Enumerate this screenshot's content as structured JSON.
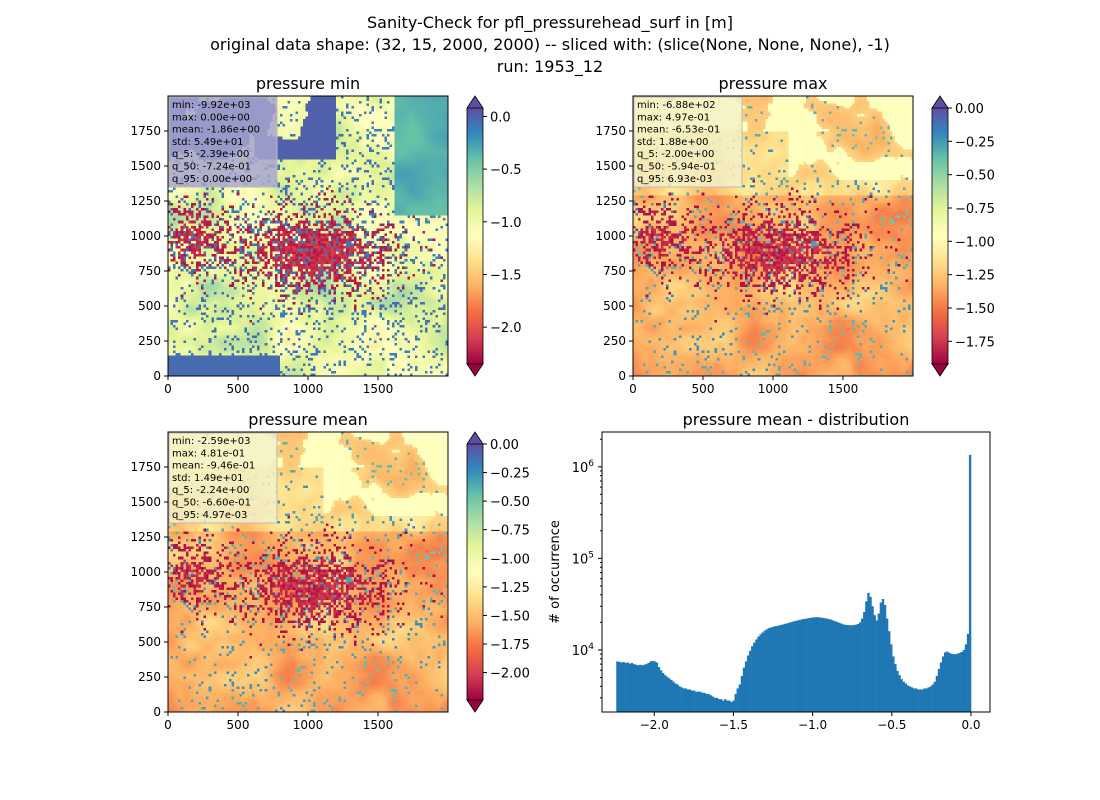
{
  "figure": {
    "title_lines": [
      "Sanity-Check for pfl_pressurehead_surf in [m]",
      "original data shape: (32, 15, 2000, 2000) -- sliced with: (slice(None, None, None), -1)",
      "run: 1953_12"
    ]
  },
  "chart_data": [
    {
      "type": "heatmap",
      "title": "pressure min",
      "colormap": "Spectral",
      "colorbar": {
        "min": -2.35,
        "max": 0.08,
        "ticks": [
          0.0,
          -0.5,
          -1.0,
          -1.5,
          -2.0
        ],
        "tick_labels": [
          "0.0",
          "−0.5",
          "−1.0",
          "−1.5",
          "−2.0"
        ],
        "extend": "both"
      },
      "xlim": [
        0,
        2000
      ],
      "ylim": [
        0,
        2000
      ],
      "xticks": [
        0,
        500,
        1000,
        1500
      ],
      "xtick_labels": [
        "0",
        "500",
        "1000",
        "1500"
      ],
      "yticks": [
        0,
        250,
        500,
        750,
        1000,
        1250,
        1500,
        1750
      ],
      "ytick_labels": [
        "0",
        "250",
        "500",
        "750",
        "1000",
        "1250",
        "1500",
        "1750"
      ],
      "stats": [
        "min: -9.92e+03",
        "max: 0.00e+00",
        "mean: -1.86e+00",
        "std: 5.49e+01",
        "q_5: -2.39e+00",
        "q_50: -7.24e-01",
        "q_95: 0.00e+00"
      ],
      "stats_box_color": "#a7a5d0"
    },
    {
      "type": "heatmap",
      "title": "pressure max",
      "colormap": "Spectral",
      "colorbar": {
        "min": -1.92,
        "max": 0.0,
        "ticks": [
          0.0,
          -0.25,
          -0.5,
          -0.75,
          -1.0,
          -1.25,
          -1.5,
          -1.75
        ],
        "tick_labels": [
          "0.00",
          "−0.25",
          "−0.50",
          "−0.75",
          "−1.00",
          "−1.25",
          "−1.50",
          "−1.75"
        ],
        "extend": "both"
      },
      "xlim": [
        0,
        2000
      ],
      "ylim": [
        0,
        2000
      ],
      "xticks": [
        0,
        500,
        1000,
        1500
      ],
      "xtick_labels": [
        "0",
        "500",
        "1000",
        "1500"
      ],
      "yticks": [
        0,
        250,
        500,
        750,
        1000,
        1250,
        1500,
        1750
      ],
      "ytick_labels": [
        "0",
        "250",
        "500",
        "750",
        "1000",
        "1250",
        "1500",
        "1750"
      ],
      "stats": [
        "min: -6.88e+02",
        "max: 4.97e-01",
        "mean: -6.53e-01",
        "std: 1.88e+00",
        "q_5: -2.00e+00",
        "q_50: -5.94e-01",
        "q_95: 6.93e-03"
      ],
      "stats_box_color": "#f4f1c6"
    },
    {
      "type": "heatmap",
      "title": "pressure mean",
      "colormap": "Spectral",
      "colorbar": {
        "min": -2.24,
        "max": 0.0,
        "ticks": [
          0.0,
          -0.25,
          -0.5,
          -0.75,
          -1.0,
          -1.25,
          -1.5,
          -1.75,
          -2.0
        ],
        "tick_labels": [
          "0.00",
          "−0.25",
          "−0.50",
          "−0.75",
          "−1.00",
          "−1.25",
          "−1.50",
          "−1.75",
          "−2.00"
        ],
        "extend": "both"
      },
      "xlim": [
        0,
        2000
      ],
      "ylim": [
        0,
        2000
      ],
      "xticks": [
        0,
        500,
        1000,
        1500
      ],
      "xtick_labels": [
        "0",
        "500",
        "1000",
        "1500"
      ],
      "yticks": [
        0,
        250,
        500,
        750,
        1000,
        1250,
        1500,
        1750
      ],
      "ytick_labels": [
        "0",
        "250",
        "500",
        "750",
        "1000",
        "1250",
        "1500",
        "1750"
      ],
      "stats": [
        "min: -2.59e+03",
        "max: 4.81e-01",
        "mean: -9.46e-01",
        "std: 1.49e+01",
        "q_5: -2.24e+00",
        "q_50: -6.60e-01",
        "q_95: 4.97e-03"
      ],
      "stats_box_color": "#f4f1c6"
    },
    {
      "type": "bar",
      "title": "pressure mean - distribution",
      "xlabel": "",
      "ylabel": "# of occurrence",
      "yscale": "log",
      "xlim": [
        -2.33,
        0.12
      ],
      "ylim": [
        2100,
        2400000
      ],
      "xticks": [
        -2.0,
        -1.5,
        -1.0,
        -0.5,
        0.0
      ],
      "xtick_labels": [
        "−2.0",
        "−1.5",
        "−1.0",
        "−0.5",
        "0.0"
      ],
      "yticks": [
        10000,
        100000,
        1000000
      ],
      "ytick_labels": [
        "10^4",
        "10^5",
        "10^6"
      ],
      "bin_range": [
        -2.24,
        0.0
      ],
      "color": "#1f77b4",
      "counts": [
        7500,
        7400,
        7300,
        7400,
        7200,
        7300,
        7100,
        7200,
        7000,
        6900,
        6800,
        6900,
        6800,
        6900,
        7000,
        7200,
        7500,
        7600,
        7500,
        7300,
        6500,
        6000,
        5600,
        5300,
        5100,
        4900,
        4700,
        4500,
        4300,
        4200,
        4000,
        3900,
        3800,
        3800,
        3700,
        3700,
        3600,
        3600,
        3500,
        3500,
        3500,
        3400,
        3400,
        3300,
        3300,
        3200,
        3100,
        3000,
        3000,
        2900,
        2900,
        2800,
        2900,
        2800,
        2800,
        2700,
        2800,
        3300,
        3800,
        4200,
        5200,
        6400,
        7500,
        8700,
        9800,
        11000,
        12000,
        13000,
        14000,
        14800,
        15500,
        16200,
        16800,
        17300,
        17600,
        17900,
        18200,
        18300,
        18500,
        18800,
        19000,
        19300,
        19600,
        19900,
        20200,
        20500,
        20800,
        21000,
        21300,
        21600,
        21800,
        22000,
        22200,
        22400,
        22600,
        22700,
        22800,
        22700,
        22600,
        22400,
        22200,
        22000,
        21700,
        21400,
        21000,
        20600,
        20200,
        19800,
        19400,
        19000,
        18800,
        18700,
        18600,
        18600,
        18700,
        18900,
        19200,
        20000,
        22000,
        26000,
        34000,
        42000,
        38000,
        30000,
        24000,
        21000,
        25000,
        33000,
        36000,
        31000,
        22000,
        16000,
        11500,
        8500,
        7000,
        5900,
        5300,
        4800,
        4500,
        4300,
        4100,
        4000,
        3900,
        3800,
        3800,
        3700,
        3700,
        3700,
        3800,
        3800,
        3900,
        4000,
        4200,
        4500,
        5200,
        6200,
        7300,
        8500,
        9400,
        9600,
        9300,
        9100,
        9000,
        9000,
        9100,
        9300,
        9500,
        10000,
        11500,
        15000,
        1350000
      ]
    }
  ]
}
